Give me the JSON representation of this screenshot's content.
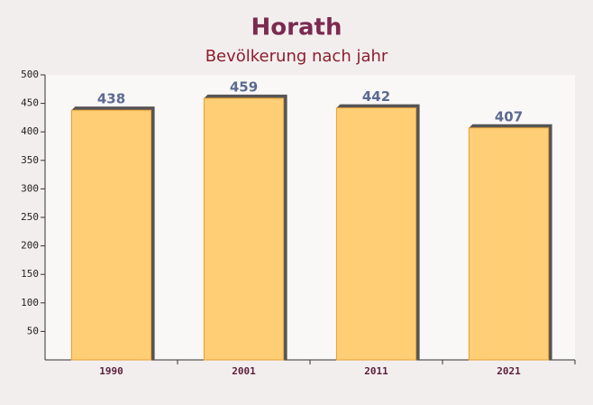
{
  "chart_data": {
    "type": "bar",
    "title": "Horath",
    "subtitle": "Bevölkerung nach jahr",
    "categories": [
      "1990",
      "2001",
      "2011",
      "2021"
    ],
    "values": [
      438,
      459,
      442,
      407
    ],
    "color": "#ffc966",
    "ylim": [
      0,
      500
    ],
    "yticks": [
      50,
      100,
      150,
      200,
      250,
      300,
      350,
      400,
      450,
      500
    ],
    "grid": false
  }
}
